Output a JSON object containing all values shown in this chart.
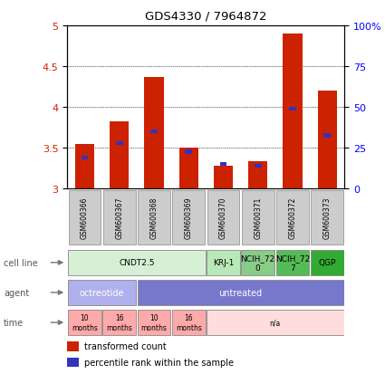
{
  "title": "GDS4330 / 7964872",
  "samples": [
    "GSM600366",
    "GSM600367",
    "GSM600368",
    "GSM600369",
    "GSM600370",
    "GSM600371",
    "GSM600372",
    "GSM600373"
  ],
  "bar_values": [
    3.55,
    3.82,
    4.37,
    3.5,
    3.28,
    3.33,
    4.9,
    4.2
  ],
  "blue_values": [
    3.38,
    3.56,
    3.7,
    3.45,
    3.3,
    3.28,
    3.98,
    3.65
  ],
  "ylim_left": [
    3.0,
    5.0
  ],
  "ylim_right": [
    0,
    100
  ],
  "yticks_left": [
    3.0,
    3.5,
    4.0,
    4.5,
    5.0
  ],
  "yticks_right": [
    0,
    25,
    50,
    75,
    100
  ],
  "ytick_right_labels": [
    "0",
    "25",
    "50",
    "75",
    "100%"
  ],
  "bar_color": "#cc2200",
  "blue_color": "#3333bb",
  "cell_lines_data": [
    {
      "label": "CNDT2.5",
      "span": [
        0,
        4
      ],
      "color": "#d6f0d6"
    },
    {
      "label": "KRJ-1",
      "span": [
        4,
        5
      ],
      "color": "#b8e8b8"
    },
    {
      "label": "NCIH_72\n0",
      "span": [
        5,
        6
      ],
      "color": "#88cc88"
    },
    {
      "label": "NCIH_72\n7",
      "span": [
        6,
        7
      ],
      "color": "#55bb55"
    },
    {
      "label": "QGP",
      "span": [
        7,
        8
      ],
      "color": "#33aa33"
    }
  ],
  "agent_data": [
    {
      "label": "octreotide",
      "span": [
        0,
        2
      ],
      "color": "#b0b0ee"
    },
    {
      "label": "untreated",
      "span": [
        2,
        8
      ],
      "color": "#7777cc"
    }
  ],
  "time_data": [
    {
      "label": "10\nmonths",
      "span": [
        0,
        1
      ],
      "color": "#ffaaaa"
    },
    {
      "label": "16\nmonths",
      "span": [
        1,
        2
      ],
      "color": "#ffaaaa"
    },
    {
      "label": "10\nmonths",
      "span": [
        2,
        3
      ],
      "color": "#ffaaaa"
    },
    {
      "label": "16\nmonths",
      "span": [
        3,
        4
      ],
      "color": "#ffaaaa"
    },
    {
      "label": "n/a",
      "span": [
        4,
        8
      ],
      "color": "#ffdddd"
    }
  ],
  "sample_box_color": "#cccccc",
  "grid_lines": [
    3.5,
    4.0,
    4.5
  ]
}
